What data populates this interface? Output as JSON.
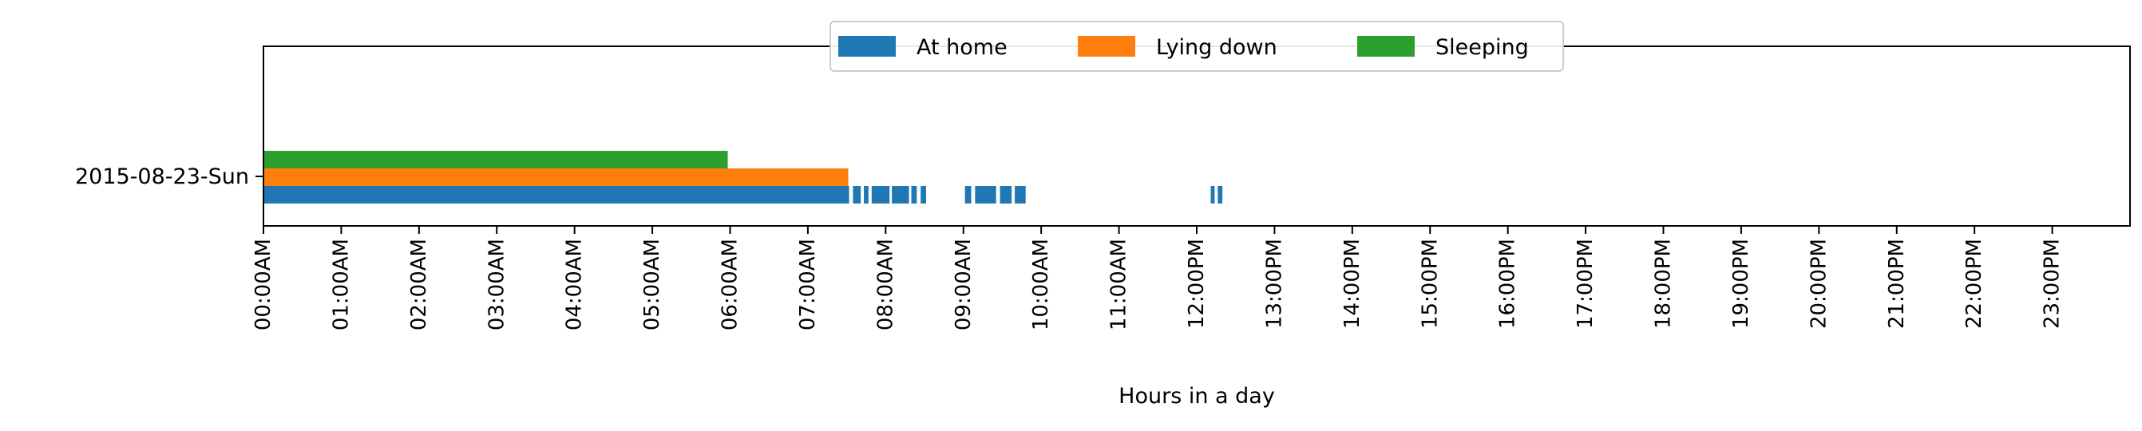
{
  "chart_data": {
    "type": "bar",
    "orientation": "horizontal",
    "title": "",
    "xlabel": "Hours in a day",
    "ylabel": "",
    "xlim": [
      0,
      24
    ],
    "x_ticks": [
      "00:00AM",
      "01:00AM",
      "02:00AM",
      "03:00AM",
      "04:00AM",
      "05:00AM",
      "06:00AM",
      "07:00AM",
      "08:00AM",
      "09:00AM",
      "10:00AM",
      "11:00AM",
      "12:00PM",
      "13:00PM",
      "14:00PM",
      "15:00PM",
      "16:00PM",
      "17:00PM",
      "18:00PM",
      "19:00PM",
      "20:00PM",
      "21:00PM",
      "22:00PM",
      "23:00PM"
    ],
    "categories": [
      "2015-08-23-Sun"
    ],
    "grid": false,
    "legend_position": "top-center",
    "series": [
      {
        "name": "At home",
        "color": "#1f77b4",
        "intervals": [
          [
            0.0,
            7.53
          ],
          [
            7.58,
            7.68
          ],
          [
            7.72,
            7.78
          ],
          [
            7.82,
            8.05
          ],
          [
            8.08,
            8.3
          ],
          [
            8.33,
            8.4
          ],
          [
            8.45,
            8.52
          ],
          [
            9.02,
            9.1
          ],
          [
            9.15,
            9.42
          ],
          [
            9.47,
            9.62
          ],
          [
            9.66,
            9.8
          ],
          [
            12.18,
            12.23
          ],
          [
            12.27,
            12.33
          ]
        ]
      },
      {
        "name": "Lying down",
        "color": "#ff7f0e",
        "intervals": [
          [
            0.0,
            7.52
          ]
        ]
      },
      {
        "name": "Sleeping",
        "color": "#2ca02c",
        "intervals": [
          [
            0.0,
            5.97
          ]
        ]
      }
    ]
  }
}
